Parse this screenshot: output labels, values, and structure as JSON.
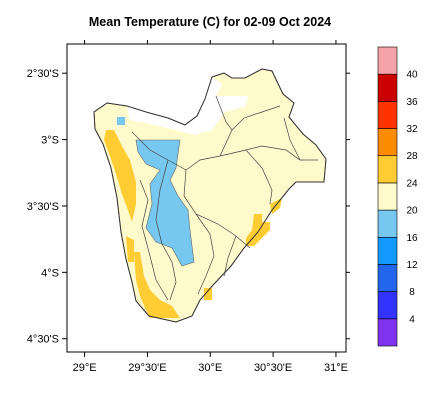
{
  "title": "Mean Temperature (C) for 02-09 Oct 2024",
  "map": {
    "lon_range": [
      28.86,
      31.08
    ],
    "lat_range": [
      -4.6,
      -2.28
    ],
    "x_ticks": [
      {
        "lon": 29.0,
        "label": "29°E"
      },
      {
        "lon": 29.5,
        "label": "29°30'E"
      },
      {
        "lon": 30.0,
        "label": "30°E"
      },
      {
        "lon": 30.5,
        "label": "30°30'E"
      },
      {
        "lon": 31.0,
        "label": "31°E"
      }
    ],
    "y_ticks": [
      {
        "lat": -2.5,
        "label": "2°30'S"
      },
      {
        "lat": -3.0,
        "label": "3°S"
      },
      {
        "lat": -3.5,
        "label": "3°30'S"
      },
      {
        "lat": -4.0,
        "label": "4°S"
      },
      {
        "lat": -4.5,
        "label": "4°30'S"
      }
    ]
  },
  "colorbar": {
    "levels": [
      "4",
      "8",
      "12",
      "16",
      "20",
      "24",
      "28",
      "32",
      "36",
      "40"
    ],
    "colors": [
      "#8033ee",
      "#3333ff",
      "#2266ee",
      "#1199ff",
      "#77c8f0",
      "#fffacc",
      "#ffcc33",
      "#ff8c00",
      "#ff3300",
      "#cc0000",
      "#f5a3a8"
    ]
  },
  "legend_categories": [
    {
      "color": "#fffacc",
      "range": "20-24"
    },
    {
      "color": "#ffcc33",
      "range": "24-28"
    },
    {
      "color": "#77c8f0",
      "range": "16-20"
    }
  ]
}
